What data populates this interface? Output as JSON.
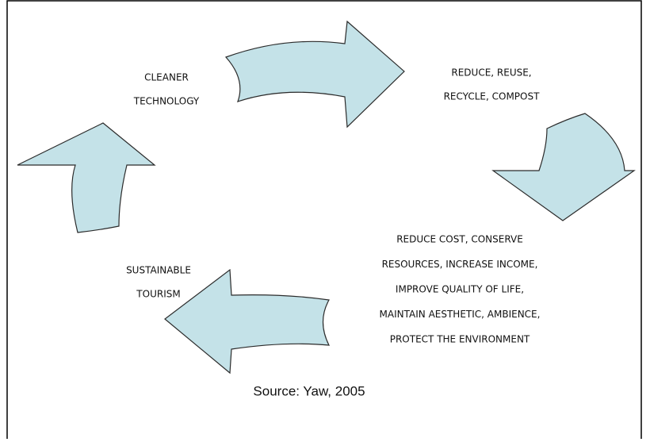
{
  "nodes": [
    {
      "lines": [
        "CLEANER",
        "TECHNOLOGY"
      ]
    },
    {
      "lines": [
        "REDUCE, REUSE,",
        "RECYCLE, COMPOST"
      ]
    },
    {
      "lines": [
        "REDUCE COST, CONSERVE",
        "RESOURCES, INCREASE INCOME,",
        "IMPROVE QUALITY OF LIFE,",
        "MAINTAIN AESTHETIC, AMBIENCE,",
        "PROTECT THE ENVIRONMENT"
      ]
    },
    {
      "lines": [
        "SUSTAINABLE",
        "TOURISM"
      ]
    }
  ],
  "source": "Source: Yaw, 2005"
}
